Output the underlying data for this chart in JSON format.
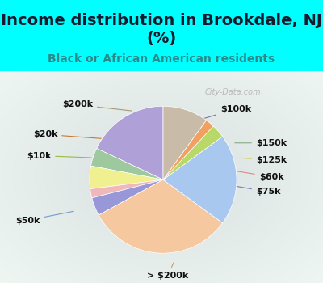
{
  "title": "Income distribution in Brookdale, NJ\n(%)",
  "subtitle": "Black or African American residents",
  "bg_cyan": "#00FFFF",
  "bg_chart": "#e8f5ee",
  "labels": [
    "$100k",
    "$150k",
    "$125k",
    "$60k",
    "$75k",
    "> $200k",
    "$50k",
    "$10k",
    "$20k",
    "$200k"
  ],
  "sizes": [
    18,
    4,
    5,
    2,
    4,
    32,
    20,
    3,
    2,
    10
  ],
  "colors": [
    "#b0a0d8",
    "#9ec89e",
    "#f0f090",
    "#f0b8b8",
    "#9898d8",
    "#f5c8a0",
    "#a8c8f0",
    "#b8d868",
    "#f0a060",
    "#c8bca8"
  ],
  "startangle": 90,
  "title_fontsize": 14,
  "subtitle_fontsize": 10,
  "label_fontsize": 8,
  "watermark": "City-Data.com"
}
